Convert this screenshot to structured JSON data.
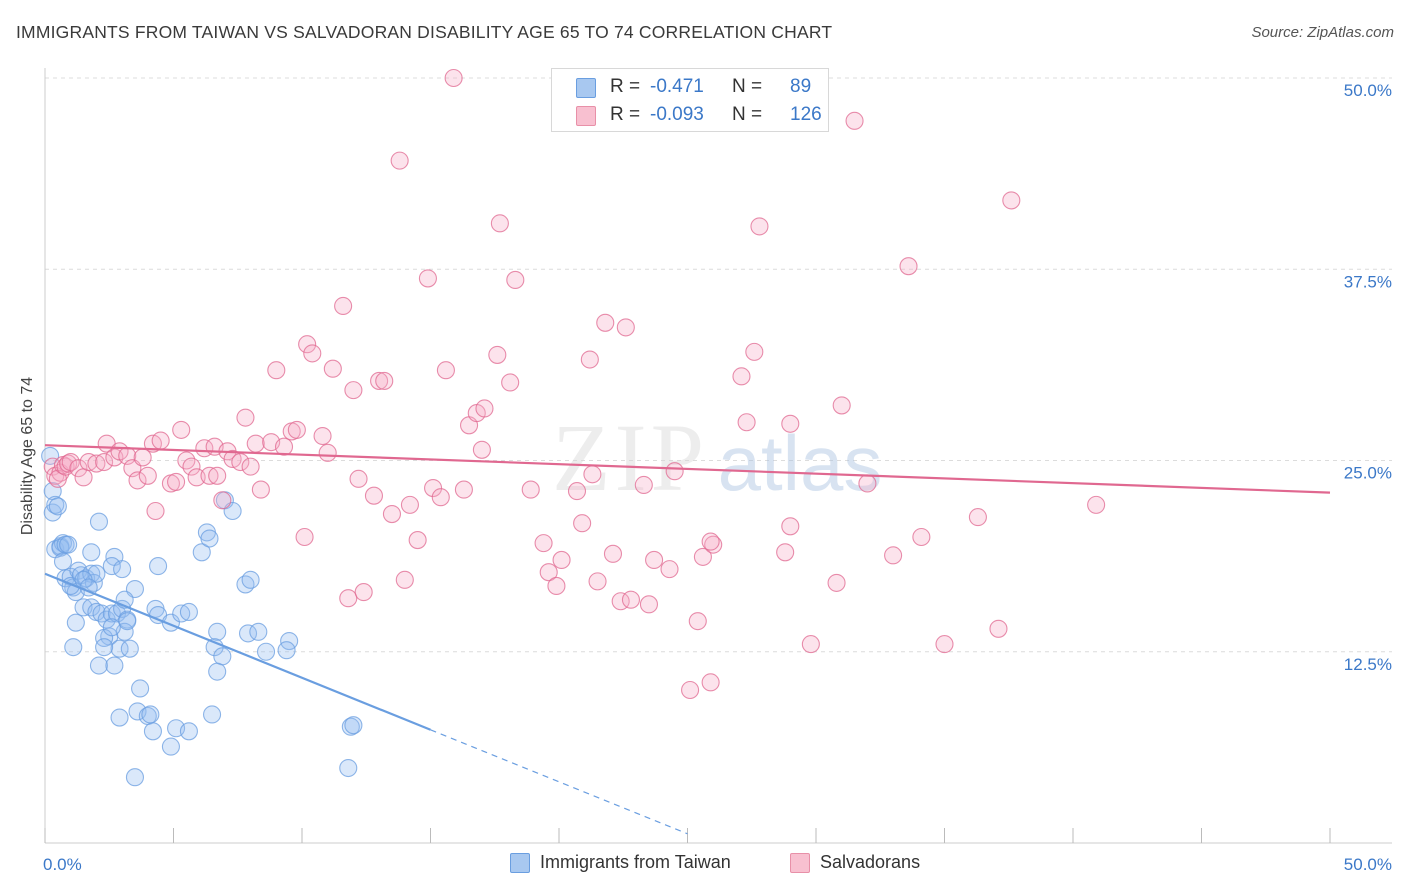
{
  "header": {
    "title": "IMMIGRANTS FROM TAIWAN VS SALVADORAN DISABILITY AGE 65 TO 74 CORRELATION CHART",
    "source": "Source: ZipAtlas.com"
  },
  "watermark": {
    "zip": "ZIP",
    "atlas": "atlas"
  },
  "legend": {
    "rows": [
      {
        "r_label": "R =",
        "r_value": "-0.471",
        "n_label": "N =",
        "n_value": "89",
        "color": "#a8c8f0",
        "border": "#6a9ee0"
      },
      {
        "r_label": "R =",
        "r_value": "-0.093",
        "n_label": "N =",
        "n_value": "126",
        "color": "#f8c0d0",
        "border": "#e890a8"
      }
    ]
  },
  "bottom_legend": [
    {
      "label": "Immigrants from Taiwan",
      "color": "#a8c8f0",
      "border": "#6a9ee0"
    },
    {
      "label": "Salvadorans",
      "color": "#f8c0d0",
      "border": "#e890a8"
    }
  ],
  "chart_data": {
    "type": "scatter",
    "title": "IMMIGRANTS FROM TAIWAN VS SALVADORAN DISABILITY AGE 65 TO 74 CORRELATION CHART",
    "xlabel": "",
    "ylabel": "Disability Age 65 to 74",
    "xlim": [
      0,
      50
    ],
    "ylim": [
      0,
      50
    ],
    "x_tick_labels": [
      "0.0%",
      "50.0%"
    ],
    "y_tick_labels": [
      "12.5%",
      "25.0%",
      "37.5%",
      "50.0%"
    ],
    "y_ticks": [
      12.5,
      25.0,
      37.5,
      50.0
    ],
    "grid": "horizontal dashed",
    "series": [
      {
        "name": "Immigrants from Taiwan",
        "color": "#6a9ee0",
        "fill": "rgba(150,190,240,0.35)",
        "trend": {
          "x0": 0,
          "y0": 17.6,
          "x1": 15,
          "y1": 7.4,
          "dash_to_x": 25,
          "dash_to_y": 0.6
        },
        "points": [
          [
            0.2,
            25.3
          ],
          [
            0.3,
            23.0
          ],
          [
            0.3,
            21.6
          ],
          [
            0.4,
            22.1
          ],
          [
            0.5,
            22.0
          ],
          [
            0.4,
            19.2
          ],
          [
            0.6,
            19.4
          ],
          [
            0.7,
            19.6
          ],
          [
            0.6,
            19.3
          ],
          [
            0.8,
            19.5
          ],
          [
            0.7,
            18.4
          ],
          [
            0.8,
            17.3
          ],
          [
            1.0,
            17.4
          ],
          [
            1.1,
            16.7
          ],
          [
            1.2,
            16.4
          ],
          [
            1.0,
            16.8
          ],
          [
            1.3,
            17.8
          ],
          [
            1.4,
            17.5
          ],
          [
            1.6,
            17.3
          ],
          [
            1.8,
            17.6
          ],
          [
            1.9,
            17.0
          ],
          [
            2.0,
            17.6
          ],
          [
            1.5,
            17.2
          ],
          [
            1.7,
            16.7
          ],
          [
            1.2,
            14.4
          ],
          [
            1.5,
            15.4
          ],
          [
            1.8,
            15.4
          ],
          [
            2.0,
            15.1
          ],
          [
            2.2,
            15.0
          ],
          [
            2.4,
            14.6
          ],
          [
            2.6,
            15.0
          ],
          [
            2.8,
            15.0
          ],
          [
            3.0,
            15.3
          ],
          [
            3.2,
            14.6
          ],
          [
            3.1,
            13.8
          ],
          [
            2.5,
            13.5
          ],
          [
            2.3,
            13.4
          ],
          [
            2.9,
            12.7
          ],
          [
            3.3,
            12.7
          ],
          [
            2.6,
            14.1
          ],
          [
            2.1,
            21.0
          ],
          [
            1.8,
            19.0
          ],
          [
            2.7,
            18.7
          ],
          [
            2.6,
            18.1
          ],
          [
            3.0,
            17.9
          ],
          [
            3.5,
            16.6
          ],
          [
            4.4,
            18.1
          ],
          [
            3.1,
            15.9
          ],
          [
            3.2,
            14.5
          ],
          [
            4.3,
            15.3
          ],
          [
            4.4,
            14.9
          ],
          [
            4.9,
            14.4
          ],
          [
            5.3,
            15.0
          ],
          [
            5.6,
            15.1
          ],
          [
            6.1,
            19.0
          ],
          [
            6.3,
            20.3
          ],
          [
            6.4,
            19.9
          ],
          [
            7.0,
            22.4
          ],
          [
            7.3,
            21.7
          ],
          [
            7.8,
            16.9
          ],
          [
            8.0,
            17.2
          ],
          [
            7.9,
            13.7
          ],
          [
            8.3,
            13.8
          ],
          [
            8.6,
            12.5
          ],
          [
            9.5,
            13.2
          ],
          [
            9.4,
            12.6
          ],
          [
            6.7,
            13.8
          ],
          [
            6.6,
            12.8
          ],
          [
            6.9,
            12.2
          ],
          [
            6.7,
            11.2
          ],
          [
            2.1,
            11.6
          ],
          [
            2.7,
            11.6
          ],
          [
            1.1,
            12.8
          ],
          [
            2.3,
            12.8
          ],
          [
            3.7,
            10.1
          ],
          [
            3.6,
            8.6
          ],
          [
            4.0,
            8.3
          ],
          [
            2.9,
            8.2
          ],
          [
            4.2,
            7.3
          ],
          [
            5.1,
            7.5
          ],
          [
            5.6,
            7.3
          ],
          [
            6.5,
            8.4
          ],
          [
            4.9,
            6.3
          ],
          [
            3.5,
            4.3
          ],
          [
            11.9,
            7.6
          ],
          [
            12.0,
            7.7
          ],
          [
            11.8,
            4.9
          ],
          [
            0.9,
            19.5
          ],
          [
            4.1,
            8.4
          ]
        ]
      },
      {
        "name": "Salvadorans",
        "color": "#e06890",
        "fill": "rgba(245,175,200,0.35)",
        "trend": {
          "x0": 0,
          "y0": 26.0,
          "x1": 50,
          "y1": 22.9
        },
        "points": [
          [
            0.3,
            24.6
          ],
          [
            0.4,
            24.0
          ],
          [
            0.6,
            24.2
          ],
          [
            0.5,
            23.8
          ],
          [
            0.7,
            24.7
          ],
          [
            0.8,
            24.6
          ],
          [
            0.9,
            24.8
          ],
          [
            1.0,
            24.9
          ],
          [
            1.3,
            24.5
          ],
          [
            1.5,
            23.9
          ],
          [
            1.7,
            24.9
          ],
          [
            2.0,
            24.8
          ],
          [
            2.3,
            24.9
          ],
          [
            2.4,
            26.1
          ],
          [
            2.7,
            25.2
          ],
          [
            2.9,
            25.6
          ],
          [
            3.2,
            25.3
          ],
          [
            3.4,
            24.5
          ],
          [
            3.6,
            23.7
          ],
          [
            3.8,
            25.2
          ],
          [
            4.0,
            24.0
          ],
          [
            4.2,
            26.1
          ],
          [
            4.3,
            21.7
          ],
          [
            4.5,
            26.3
          ],
          [
            4.9,
            23.5
          ],
          [
            5.1,
            23.6
          ],
          [
            5.3,
            27.0
          ],
          [
            5.5,
            25.0
          ],
          [
            5.7,
            24.6
          ],
          [
            5.9,
            23.9
          ],
          [
            6.2,
            25.8
          ],
          [
            6.4,
            24.0
          ],
          [
            6.6,
            25.9
          ],
          [
            6.7,
            24.0
          ],
          [
            6.9,
            22.4
          ],
          [
            7.1,
            25.6
          ],
          [
            7.3,
            25.1
          ],
          [
            7.6,
            24.9
          ],
          [
            7.8,
            27.8
          ],
          [
            8.0,
            24.6
          ],
          [
            8.2,
            26.1
          ],
          [
            8.4,
            23.1
          ],
          [
            8.8,
            26.2
          ],
          [
            9.0,
            30.9
          ],
          [
            9.3,
            25.9
          ],
          [
            9.6,
            26.9
          ],
          [
            9.8,
            27.0
          ],
          [
            10.1,
            20.0
          ],
          [
            10.2,
            32.6
          ],
          [
            10.4,
            32.0
          ],
          [
            10.8,
            26.6
          ],
          [
            11.0,
            25.5
          ],
          [
            11.2,
            31.0
          ],
          [
            11.6,
            35.1
          ],
          [
            11.8,
            16.0
          ],
          [
            12.0,
            29.6
          ],
          [
            12.2,
            23.8
          ],
          [
            12.4,
            16.4
          ],
          [
            12.8,
            22.7
          ],
          [
            13.0,
            30.2
          ],
          [
            13.2,
            30.2
          ],
          [
            13.5,
            21.5
          ],
          [
            13.8,
            44.6
          ],
          [
            14.0,
            17.2
          ],
          [
            14.2,
            22.1
          ],
          [
            14.5,
            19.8
          ],
          [
            14.9,
            36.9
          ],
          [
            15.1,
            23.2
          ],
          [
            15.4,
            22.6
          ],
          [
            15.6,
            30.9
          ],
          [
            15.9,
            50.0
          ],
          [
            16.3,
            23.1
          ],
          [
            16.5,
            27.3
          ],
          [
            16.8,
            28.1
          ],
          [
            17.0,
            25.7
          ],
          [
            17.1,
            28.4
          ],
          [
            17.6,
            31.9
          ],
          [
            17.7,
            40.5
          ],
          [
            18.1,
            30.1
          ],
          [
            18.3,
            36.8
          ],
          [
            18.9,
            23.1
          ],
          [
            19.4,
            19.6
          ],
          [
            19.6,
            17.7
          ],
          [
            19.9,
            16.8
          ],
          [
            20.1,
            18.5
          ],
          [
            20.7,
            23.0
          ],
          [
            20.9,
            20.9
          ],
          [
            21.2,
            31.6
          ],
          [
            21.3,
            24.1
          ],
          [
            21.5,
            17.1
          ],
          [
            21.8,
            34.0
          ],
          [
            22.1,
            18.9
          ],
          [
            22.4,
            15.8
          ],
          [
            22.6,
            33.7
          ],
          [
            22.8,
            15.9
          ],
          [
            23.3,
            23.4
          ],
          [
            23.5,
            15.6
          ],
          [
            23.7,
            18.5
          ],
          [
            24.3,
            17.9
          ],
          [
            24.5,
            24.3
          ],
          [
            25.1,
            10.0
          ],
          [
            25.4,
            14.5
          ],
          [
            25.6,
            18.7
          ],
          [
            25.9,
            10.5
          ],
          [
            26.0,
            19.5
          ],
          [
            25.9,
            19.7
          ],
          [
            26.4,
            47.2
          ],
          [
            27.1,
            30.5
          ],
          [
            27.3,
            27.5
          ],
          [
            27.6,
            32.1
          ],
          [
            27.8,
            40.3
          ],
          [
            28.8,
            19.0
          ],
          [
            29.0,
            27.4
          ],
          [
            29.0,
            20.7
          ],
          [
            29.8,
            13.0
          ],
          [
            30.8,
            17.0
          ],
          [
            31.0,
            28.6
          ],
          [
            31.5,
            47.2
          ],
          [
            32.0,
            23.5
          ],
          [
            33.0,
            18.8
          ],
          [
            33.6,
            37.7
          ],
          [
            34.1,
            20.0
          ],
          [
            35.0,
            13.0
          ],
          [
            36.3,
            21.3
          ],
          [
            37.1,
            14.0
          ],
          [
            37.6,
            42.0
          ],
          [
            40.9,
            22.1
          ]
        ]
      }
    ]
  }
}
